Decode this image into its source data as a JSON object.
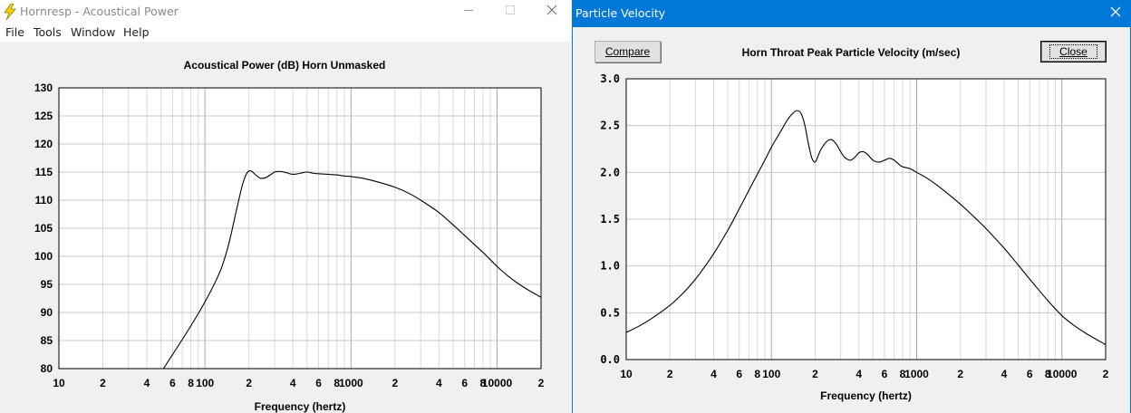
{
  "main_window": {
    "title": "Hornresp - Acoustical Power",
    "menu": [
      "File",
      "Tools",
      "Window",
      "Help"
    ]
  },
  "pv_window": {
    "title": "Particle Velocity",
    "compare_label": "Compare",
    "close_label": "Close"
  },
  "colors": {
    "titlebar_active": "#0078d7",
    "client_bg": "#f0f0f0",
    "grid": "#c8c8c8",
    "curve": "#000000"
  },
  "chart_data": [
    {
      "type": "line",
      "title": "Acoustical Power (dB)   Horn   Unmasked",
      "xlabel": "Frequency (hertz)",
      "ylabel": "",
      "xscale": "log",
      "xlim": [
        10,
        20000
      ],
      "ylim": [
        80,
        130
      ],
      "grid": true,
      "x_tick_labels": [
        "10",
        "2",
        "4",
        "6",
        "8",
        "100",
        "2",
        "4",
        "6",
        "8",
        "1000",
        "2",
        "4",
        "6",
        "8",
        "10000",
        "2"
      ],
      "x_tick_values": [
        10,
        20,
        40,
        60,
        80,
        100,
        200,
        400,
        600,
        800,
        1000,
        2000,
        4000,
        6000,
        8000,
        10000,
        20000
      ],
      "y_tick_labels": [
        "130",
        "125",
        "120",
        "115",
        "110",
        "105",
        "100",
        "95",
        "90",
        "85",
        "80"
      ],
      "y_tick_values": [
        130,
        125,
        120,
        115,
        110,
        105,
        100,
        95,
        90,
        85,
        80
      ],
      "series": [
        {
          "x": [
            52,
            60,
            70,
            80,
            90,
            100,
            110,
            120,
            130,
            140,
            150,
            160,
            170,
            180,
            190,
            200,
            210,
            220,
            230,
            240,
            260,
            280,
            300,
            330,
            360,
            400,
            450,
            500,
            550,
            600,
            700,
            800,
            900,
            1000,
            1200,
            1500,
            2000,
            2500,
            3000,
            4000,
            5000,
            6000,
            8000,
            10000,
            12000,
            15000,
            20000
          ],
          "y": [
            80.0,
            82.5,
            85.2,
            87.6,
            89.8,
            91.9,
            93.9,
            95.9,
            98.0,
            100.6,
            103.6,
            106.9,
            109.9,
            112.6,
            114.4,
            115.2,
            115.1,
            114.6,
            114.2,
            113.9,
            114.0,
            114.5,
            115.0,
            115.1,
            114.9,
            114.6,
            114.8,
            115.0,
            114.8,
            114.7,
            114.6,
            114.5,
            114.3,
            114.2,
            113.9,
            113.3,
            112.3,
            111.2,
            110.0,
            107.8,
            105.6,
            103.7,
            100.7,
            98.2,
            96.4,
            94.6,
            92.7
          ]
        }
      ]
    },
    {
      "type": "line",
      "title": "Horn Throat Peak Particle Velocity (m/sec)",
      "xlabel": "Frequency (hertz)",
      "ylabel": "",
      "xscale": "log",
      "xlim": [
        10,
        20000
      ],
      "ylim": [
        0.0,
        3.0
      ],
      "grid": true,
      "x_tick_labels": [
        "10",
        "2",
        "4",
        "6",
        "8",
        "100",
        "2",
        "4",
        "6",
        "8",
        "1000",
        "2",
        "4",
        "6",
        "8",
        "10000",
        "2"
      ],
      "x_tick_values": [
        10,
        20,
        40,
        60,
        80,
        100,
        200,
        400,
        600,
        800,
        1000,
        2000,
        4000,
        6000,
        8000,
        10000,
        20000
      ],
      "y_tick_labels": [
        "3.0",
        "2.5",
        "2.0",
        "1.5",
        "1.0",
        "0.5",
        "0.0"
      ],
      "y_tick_values": [
        3.0,
        2.5,
        2.0,
        1.5,
        1.0,
        0.5,
        0.0
      ],
      "series": [
        {
          "x": [
            10,
            12,
            15,
            20,
            25,
            30,
            35,
            40,
            50,
            60,
            70,
            80,
            90,
            100,
            110,
            120,
            130,
            140,
            150,
            160,
            170,
            180,
            190,
            200,
            210,
            220,
            240,
            260,
            280,
            300,
            320,
            350,
            380,
            400,
            430,
            460,
            500,
            550,
            600,
            650,
            700,
            750,
            800,
            900,
            1000,
            1200,
            1500,
            2000,
            2500,
            3000,
            4000,
            5000,
            6000,
            8000,
            10000,
            12000,
            15000,
            20000
          ],
          "y": [
            0.29,
            0.35,
            0.44,
            0.58,
            0.72,
            0.86,
            1.0,
            1.13,
            1.38,
            1.61,
            1.81,
            1.98,
            2.13,
            2.27,
            2.38,
            2.48,
            2.57,
            2.63,
            2.66,
            2.63,
            2.5,
            2.3,
            2.15,
            2.11,
            2.18,
            2.25,
            2.33,
            2.35,
            2.3,
            2.22,
            2.16,
            2.13,
            2.17,
            2.21,
            2.22,
            2.19,
            2.13,
            2.11,
            2.13,
            2.15,
            2.13,
            2.09,
            2.06,
            2.04,
            2.0,
            1.93,
            1.82,
            1.66,
            1.52,
            1.4,
            1.19,
            1.01,
            0.86,
            0.63,
            0.47,
            0.37,
            0.27,
            0.16
          ]
        }
      ]
    }
  ]
}
